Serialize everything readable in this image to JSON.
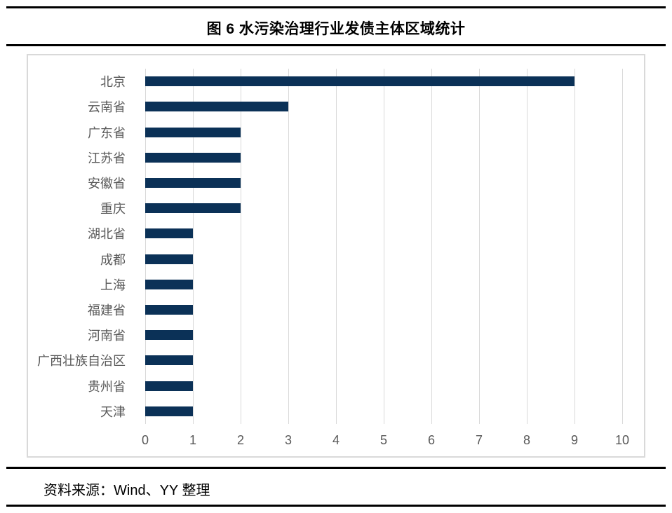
{
  "header": {
    "title": "图 6 水污染治理行业发债主体区域统计"
  },
  "chart_data": {
    "type": "bar",
    "orientation": "horizontal",
    "title": "图 6 水污染治理行业发债主体区域统计",
    "categories": [
      "北京",
      "云南省",
      "广东省",
      "江苏省",
      "安徽省",
      "重庆",
      "湖北省",
      "成都",
      "上海",
      "福建省",
      "河南省",
      "广西壮族自治区",
      "贵州省",
      "天津"
    ],
    "values": [
      9,
      3,
      2,
      2,
      2,
      2,
      1,
      1,
      1,
      1,
      1,
      1,
      1,
      1
    ],
    "xlabel": "",
    "ylabel": "",
    "xlim": [
      0,
      10
    ],
    "x_ticks": [
      0,
      1,
      2,
      3,
      4,
      5,
      6,
      7,
      8,
      9,
      10
    ],
    "grid": "vertical-only",
    "legend": "none",
    "bar_color": "#0b3157"
  },
  "footer": {
    "source": "资料来源：Wind、YY 整理"
  },
  "colors": {
    "bar": "#0b3157",
    "gridline": "#d9d9d9",
    "frame_border": "#d9d9d9",
    "axis_text": "#595959",
    "rule": "#000000",
    "background": "#ffffff"
  }
}
